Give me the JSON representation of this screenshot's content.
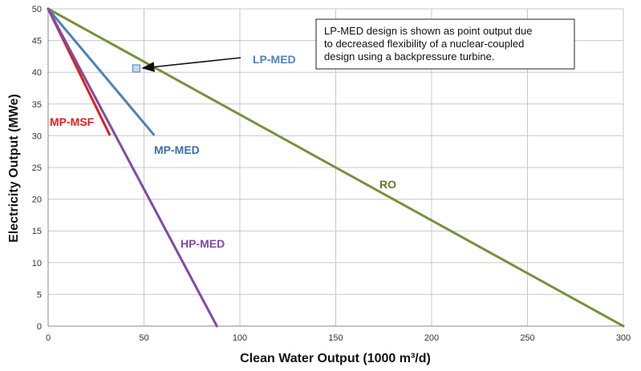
{
  "chart_data": {
    "type": "line",
    "title": "",
    "xlabel": "Clean Water Output (1000 m³/d)",
    "ylabel": "Electricity Output (MWe)",
    "xlim": [
      0,
      300
    ],
    "ylim": [
      0,
      50
    ],
    "x_ticks": [
      "0",
      "50",
      "100",
      "150",
      "200",
      "250",
      "300"
    ],
    "y_ticks": [
      "0",
      "5",
      "10",
      "15",
      "20",
      "25",
      "30",
      "35",
      "40",
      "45",
      "50"
    ],
    "grid": true,
    "legend": "none",
    "series": [
      {
        "name": "RO",
        "color": "#76923c",
        "points": [
          [
            0,
            50
          ],
          [
            300,
            0
          ]
        ]
      },
      {
        "name": "MP-MED",
        "color": "#4f81bd",
        "points": [
          [
            0,
            50
          ],
          [
            55,
            30.2
          ]
        ]
      },
      {
        "name": "MP-MSF",
        "color": "#e0201b",
        "points": [
          [
            0,
            50
          ],
          [
            32,
            30.2
          ]
        ]
      },
      {
        "name": "HP-MED",
        "color": "#7f4aa8",
        "points": [
          [
            0,
            50
          ],
          [
            88,
            0
          ]
        ]
      },
      {
        "name": "LP-MED",
        "color": "#4f81bd",
        "type": "point",
        "points": [
          [
            46,
            40.6
          ]
        ]
      }
    ],
    "annotation": {
      "lines": [
        "LP-MED design is shown as point output due",
        "to decreased flexibility of a nuclear-coupled",
        "design using a backpressure turbine."
      ]
    }
  }
}
